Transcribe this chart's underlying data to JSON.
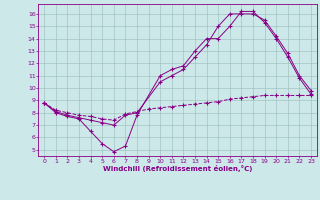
{
  "xlabel": "Windchill (Refroidissement éolien,°C)",
  "bg_color": "#cce8e8",
  "line_color": "#880088",
  "grid_color": "#99bbbb",
  "xlim": [
    -0.5,
    23.5
  ],
  "ylim": [
    4.5,
    16.8
  ],
  "xticks": [
    0,
    1,
    2,
    3,
    4,
    5,
    6,
    7,
    8,
    9,
    10,
    11,
    12,
    13,
    14,
    15,
    16,
    17,
    18,
    19,
    20,
    21,
    22,
    23
  ],
  "yticks": [
    5,
    6,
    7,
    8,
    9,
    10,
    11,
    12,
    13,
    14,
    15,
    16
  ],
  "line1_x": [
    0,
    1,
    2,
    3,
    4,
    5,
    6,
    7,
    8,
    10,
    11,
    12,
    13,
    14,
    15,
    16,
    17,
    18,
    19,
    20,
    21,
    22,
    23
  ],
  "line1_y": [
    8.8,
    8.0,
    7.7,
    7.5,
    6.5,
    5.5,
    4.85,
    5.3,
    7.8,
    11.0,
    11.5,
    11.8,
    13.0,
    14.0,
    14.0,
    15.0,
    16.2,
    16.2,
    15.3,
    14.0,
    12.5,
    10.8,
    9.5
  ],
  "line2_x": [
    0,
    1,
    2,
    3,
    4,
    5,
    6,
    7,
    8,
    9,
    10,
    11,
    12,
    13,
    14,
    15,
    16,
    17,
    18,
    19,
    20,
    21,
    22,
    23
  ],
  "line2_y": [
    8.8,
    8.2,
    8.0,
    7.8,
    7.7,
    7.5,
    7.4,
    7.9,
    8.1,
    8.3,
    8.4,
    8.5,
    8.6,
    8.7,
    8.8,
    8.9,
    9.1,
    9.2,
    9.3,
    9.4,
    9.4,
    9.4,
    9.4,
    9.4
  ],
  "line3_x": [
    0,
    1,
    2,
    3,
    4,
    5,
    6,
    7,
    8,
    10,
    11,
    12,
    13,
    14,
    15,
    16,
    17,
    18,
    19,
    20,
    21,
    22,
    23
  ],
  "line3_y": [
    8.8,
    8.1,
    7.8,
    7.6,
    7.4,
    7.2,
    7.0,
    7.8,
    8.0,
    10.5,
    11.0,
    11.5,
    12.5,
    13.5,
    15.0,
    16.0,
    16.0,
    16.0,
    15.5,
    14.2,
    12.8,
    11.0,
    9.8
  ]
}
